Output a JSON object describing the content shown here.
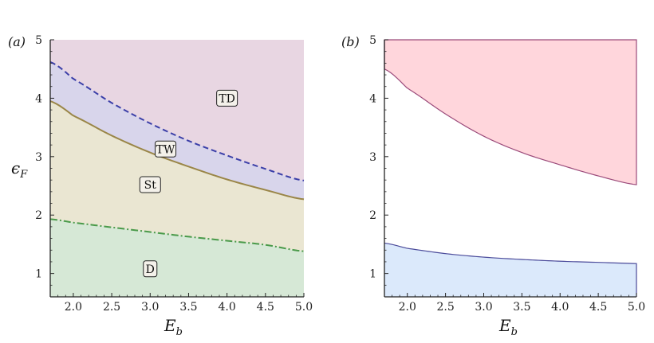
{
  "chart_data": [
    {
      "panel_label": "(a)",
      "type": "area",
      "xlabel_main": "E",
      "xlabel_sub": "b",
      "ylabel_main": "ϵ",
      "ylabel_sub": "F",
      "xlim": [
        1.7,
        5.0
      ],
      "ylim": [
        0.6,
        5.0
      ],
      "xticks": [
        2.0,
        2.5,
        3.0,
        3.5,
        4.0,
        4.5,
        5.0
      ],
      "xtick_labels": [
        "2.0",
        "2.5",
        "3.0",
        "3.5",
        "4.0",
        "4.5",
        "5.0"
      ],
      "yticks": [
        1,
        2,
        3,
        4,
        5
      ],
      "ytick_labels": [
        "1",
        "2",
        "3",
        "4",
        "5"
      ],
      "grid": false,
      "curves": {
        "x": [
          1.7,
          2.0,
          2.5,
          3.0,
          3.5,
          4.0,
          4.5,
          5.0
        ],
        "td_boundary": [
          4.62,
          4.33,
          3.92,
          3.57,
          3.27,
          3.02,
          2.79,
          2.59
        ],
        "tw_boundary": [
          3.95,
          3.7,
          3.36,
          3.07,
          2.83,
          2.61,
          2.43,
          2.27
        ],
        "st_boundary": [
          1.93,
          1.87,
          1.79,
          1.71,
          1.63,
          1.56,
          1.49,
          1.38
        ]
      },
      "regions": [
        {
          "label": "TD",
          "x": 4.0,
          "y": 4.0,
          "color": "#e8d6e2"
        },
        {
          "label": "TW",
          "x": 3.2,
          "y": 3.13,
          "color": "#d8d5eb"
        },
        {
          "label": "St",
          "x": 3.0,
          "y": 2.52,
          "color": "#eae6d2"
        },
        {
          "label": "D",
          "x": 3.0,
          "y": 1.08,
          "color": "#d6e8d6"
        }
      ],
      "line_colors": {
        "td_boundary": "#3b3fa8",
        "tw_boundary": "#9a8648",
        "st_boundary": "#4a9a4a"
      }
    },
    {
      "panel_label": "(b)",
      "type": "area",
      "xlabel_main": "E",
      "xlabel_sub": "b",
      "xlim": [
        1.7,
        5.0
      ],
      "ylim": [
        0.6,
        5.0
      ],
      "xticks": [
        2.0,
        2.5,
        3.0,
        3.5,
        4.0,
        4.5,
        5.0
      ],
      "xtick_labels": [
        "2.0",
        "2.5",
        "3.0",
        "3.5",
        "4.0",
        "4.5",
        "5.0"
      ],
      "yticks": [
        1,
        2,
        3,
        4,
        5
      ],
      "ytick_labels": [
        "1",
        "2",
        "3",
        "4",
        "5"
      ],
      "grid": false,
      "upper_band": {
        "x": [
          1.7,
          2.0,
          2.5,
          3.0,
          3.5,
          4.0,
          4.5,
          5.0
        ],
        "lower": [
          4.5,
          4.17,
          3.73,
          3.35,
          3.07,
          2.86,
          2.67,
          2.52
        ],
        "upper": 5.0,
        "fill": "#ffd6dc",
        "stroke": "#9b4a7a"
      },
      "lower_band": {
        "x": [
          1.7,
          2.0,
          2.5,
          3.0,
          3.5,
          4.0,
          4.5,
          5.0
        ],
        "upper": [
          1.52,
          1.43,
          1.34,
          1.28,
          1.24,
          1.21,
          1.19,
          1.17
        ],
        "fill": "#dbe9fb",
        "stroke": "#4a4a9a"
      }
    }
  ]
}
